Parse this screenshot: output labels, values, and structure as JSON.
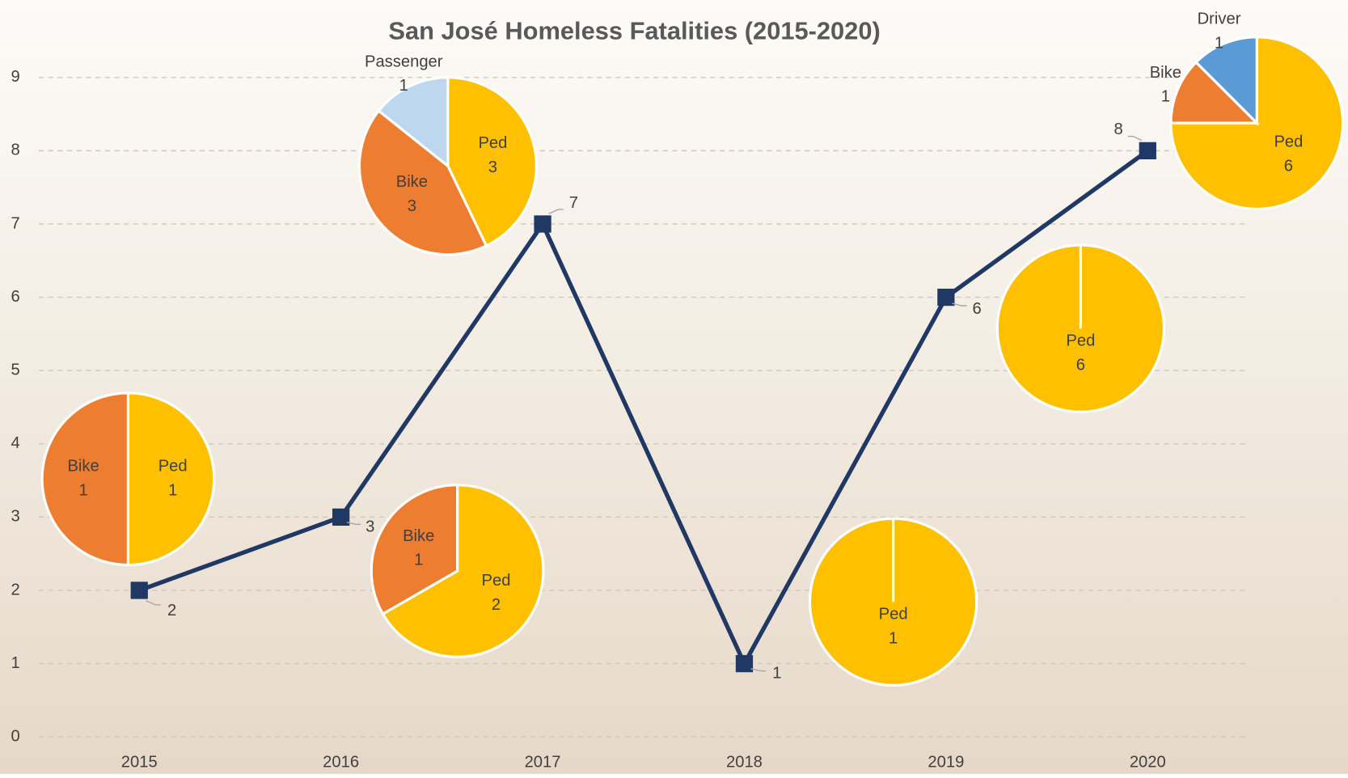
{
  "chart_data": [
    {
      "type": "line",
      "title": "San José Homeless Fatalities (2015-2020)",
      "categories": [
        "2015",
        "2016",
        "2017",
        "2018",
        "2019",
        "2020"
      ],
      "values": [
        2,
        3,
        7,
        1,
        6,
        8
      ],
      "color": "#203864",
      "ylim": [
        0,
        9
      ],
      "yticks": [
        0,
        1,
        2,
        3,
        4,
        5,
        6,
        7,
        8,
        9
      ],
      "grid": true
    },
    {
      "type": "pie",
      "categories": [
        "Ped",
        "Bike"
      ],
      "values": [
        1,
        1
      ],
      "colors": [
        "#ffc000",
        "#ed7d31"
      ]
    },
    {
      "type": "pie",
      "categories": [
        "Ped",
        "Bike"
      ],
      "values": [
        2,
        1
      ],
      "colors": [
        "#ffc000",
        "#ed7d31"
      ]
    },
    {
      "type": "pie",
      "categories": [
        "Ped",
        "Bike",
        "Passenger"
      ],
      "values": [
        3,
        3,
        1
      ],
      "colors": [
        "#ffc000",
        "#ed7d31",
        "#bdd7ee"
      ]
    },
    {
      "type": "pie",
      "categories": [
        "Ped"
      ],
      "values": [
        1
      ],
      "colors": [
        "#ffc000"
      ]
    },
    {
      "type": "pie",
      "categories": [
        "Ped"
      ],
      "values": [
        6
      ],
      "colors": [
        "#ffc000"
      ]
    },
    {
      "type": "pie",
      "categories": [
        "Ped",
        "Bike",
        "Driver"
      ],
      "values": [
        6,
        1,
        1
      ],
      "colors": [
        "#ffc000",
        "#ed7d31",
        "#5b9bd5"
      ]
    }
  ]
}
